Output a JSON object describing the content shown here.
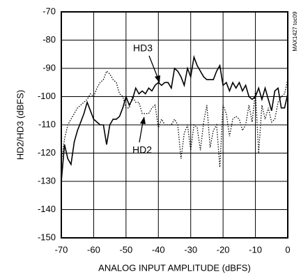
{
  "chart_data": {
    "type": "line",
    "xlabel": "ANALOG INPUT AMPLITUDE (dBFS)",
    "ylabel": "HD2/HD3 (dBFS)",
    "side_note": "MAX1427 toc09",
    "annotations": [
      "HD3",
      "HD2"
    ],
    "x": [
      -70,
      -69,
      -68,
      -67,
      -66,
      -65,
      -64,
      -63,
      -62,
      -61,
      -60,
      -59,
      -58,
      -57,
      -56,
      -55,
      -54,
      -53,
      -52,
      -51,
      -50,
      -49,
      -48,
      -47,
      -46,
      -45,
      -44,
      -43,
      -42,
      -41,
      -40,
      -39,
      -38,
      -37,
      -36,
      -35,
      -34,
      -33,
      -32,
      -31,
      -30,
      -29,
      -28,
      -27,
      -26,
      -25,
      -24,
      -23,
      -22,
      -21,
      -20,
      -19,
      -18,
      -17,
      -16,
      -15,
      -14,
      -13,
      -12,
      -11,
      -10,
      -9,
      -8,
      -7,
      -6,
      -5,
      -4,
      -3,
      -2,
      -1,
      0
    ],
    "series": [
      {
        "name": "HD3",
        "color": "#000000",
        "linestyle": "solid",
        "values": [
          -130,
          -117,
          -122,
          -124,
          -116,
          -112,
          -109,
          -106,
          -102,
          -105,
          -108,
          -109,
          -110,
          -110,
          -117,
          -110,
          -108,
          -108,
          -107,
          -104,
          -100,
          -103,
          -101,
          -97,
          -99,
          -98,
          -99,
          -97,
          -98,
          -96,
          -95,
          -96,
          -95,
          -95,
          -97,
          -90,
          -91,
          -93,
          -96,
          -90,
          -93,
          -86,
          -89,
          -91,
          -93,
          -94,
          -94,
          -94,
          -91,
          -89,
          -96,
          -95,
          -98,
          -95,
          -97,
          -95,
          -98,
          -96,
          -100,
          -101,
          -100,
          -97,
          -101,
          -97,
          -101,
          -105,
          -98,
          -97,
          -104,
          -104,
          -99
        ]
      },
      {
        "name": "HD2",
        "color": "#000000",
        "linestyle": "dotted",
        "values": [
          -123,
          -115,
          -110,
          -108,
          -106,
          -104,
          -103,
          -102,
          -101,
          -99,
          -100,
          -97,
          -95,
          -94,
          -91,
          -92,
          -94,
          -95,
          -99,
          -100,
          -104,
          -104,
          -100,
          -102,
          -102,
          -106,
          -106,
          -106,
          -104,
          -103,
          -111,
          -108,
          -110,
          -110,
          -110,
          -108,
          -110,
          -122,
          -113,
          -110,
          -119,
          -110,
          -111,
          -119,
          -109,
          -103,
          -118,
          -112,
          -110,
          -125,
          -103,
          -106,
          -114,
          -108,
          -107,
          -108,
          -112,
          -110,
          -103,
          -109,
          -98,
          -120,
          -103,
          -108,
          -104,
          -109,
          -108,
          -102,
          -100,
          -99,
          -94
        ]
      }
    ],
    "xlim": [
      -70,
      0
    ],
    "xticks": [
      -70,
      -60,
      -50,
      -40,
      -30,
      -20,
      -10,
      0
    ],
    "ylim": [
      -150,
      -70
    ],
    "yticks": [
      -70,
      -80,
      -90,
      -100,
      -110,
      -120,
      -130,
      -140,
      -150
    ],
    "grid": true
  }
}
